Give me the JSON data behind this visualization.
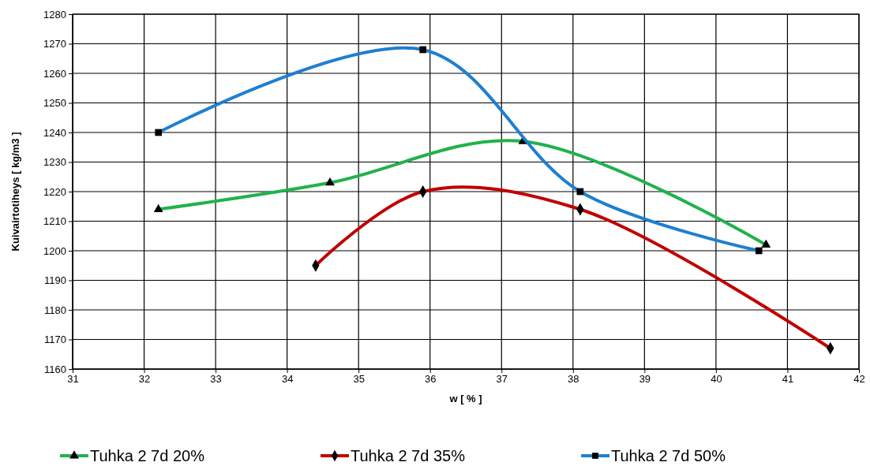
{
  "chart_data": {
    "type": "line",
    "xlabel": "w [ % ]",
    "ylabel": "Kuivairtotiheys [ kg/m3 ]",
    "xlim": [
      31,
      42
    ],
    "xticks": [
      31,
      32,
      33,
      34,
      35,
      36,
      37,
      38,
      39,
      40,
      41,
      42
    ],
    "ylim": [
      1160,
      1280
    ],
    "yticks": [
      1160,
      1170,
      1180,
      1190,
      1200,
      1210,
      1220,
      1230,
      1240,
      1250,
      1260,
      1270,
      1280
    ],
    "grid": true,
    "legend": "bottom",
    "series": [
      {
        "name": "Tuhka 2 7d 20%",
        "color": "#22b14c",
        "marker": "triangle",
        "x": [
          32.2,
          34.6,
          37.3,
          40.7
        ],
        "values": [
          1214,
          1223,
          1237,
          1202
        ]
      },
      {
        "name": "Tuhka 2 7d 35%",
        "color": "#c00000",
        "marker": "diamond",
        "x": [
          34.4,
          35.9,
          38.1,
          41.6
        ],
        "values": [
          1195,
          1220,
          1214,
          1167
        ]
      },
      {
        "name": "Tuhka 2 7d 50%",
        "color": "#1f7fd0",
        "marker": "square",
        "x": [
          32.2,
          35.9,
          38.1,
          40.6
        ],
        "values": [
          1240,
          1268,
          1220,
          1200
        ]
      }
    ]
  }
}
